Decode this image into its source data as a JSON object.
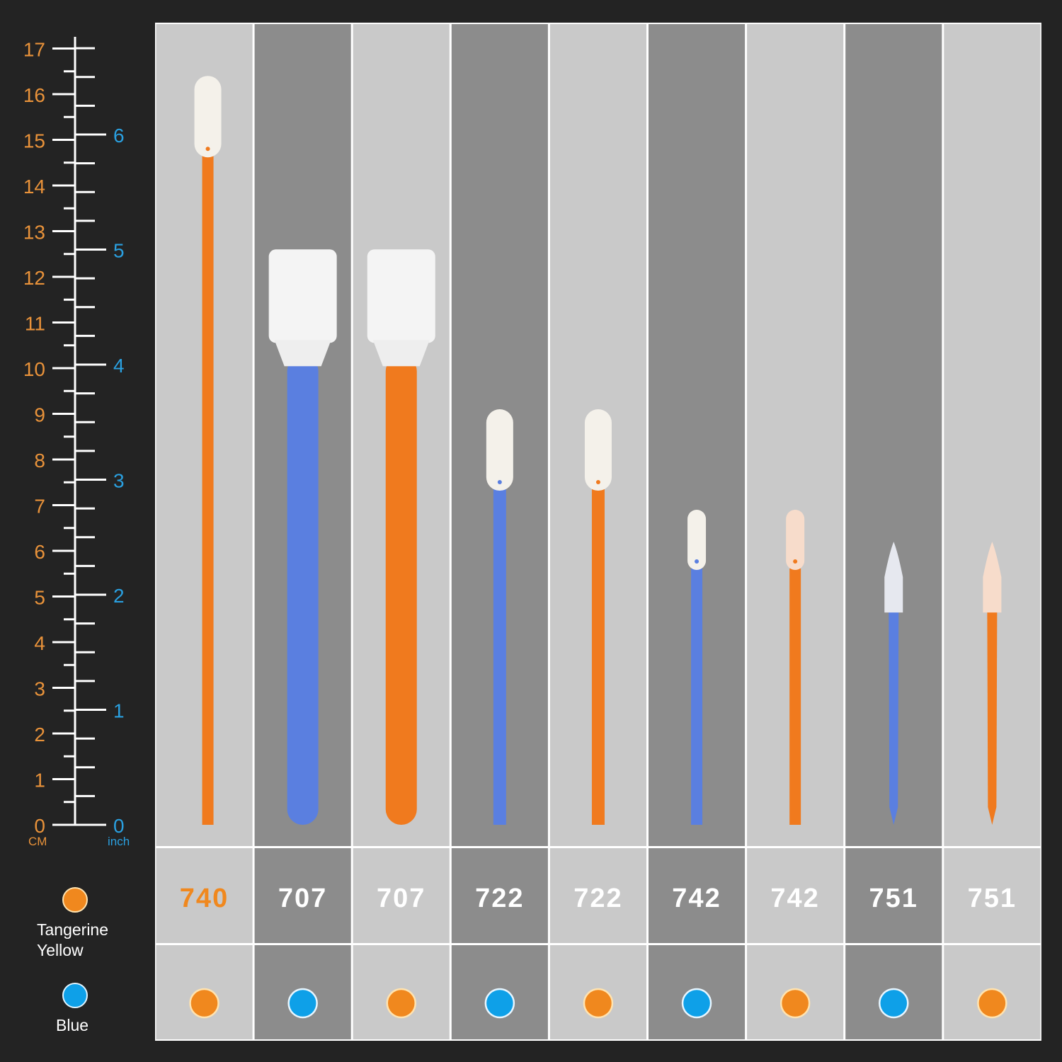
{
  "ruler": {
    "cm_unit": "CM",
    "inch_unit": "inch",
    "cm_max": 17,
    "inch_max": 6,
    "cm_color": "#e8923a",
    "inch_color": "#2aa0e0"
  },
  "legend": {
    "items": [
      {
        "label": "Tangerine\nYellow",
        "color": "#f0881e"
      },
      {
        "label": "Blue",
        "color": "#0ea0e8"
      }
    ]
  },
  "colors": {
    "tangerine": "#f07a1e",
    "blue": "#5a7fe0",
    "chip_tangerine": "#f0881e",
    "chip_blue": "#0ea0e8",
    "light_col": "#c9c9c9",
    "dark_col": "#8c8c8c"
  },
  "products": [
    {
      "code": "740",
      "color": "tangerine",
      "head": "rounded-tip",
      "length_cm": 16.4,
      "highlight": true
    },
    {
      "code": "707",
      "color": "blue",
      "head": "rectangular-foam",
      "length_cm": 12.6
    },
    {
      "code": "707",
      "color": "tangerine",
      "head": "rectangular-foam",
      "length_cm": 12.6
    },
    {
      "code": "722",
      "color": "blue",
      "head": "rounded-tip",
      "length_cm": 9.1
    },
    {
      "code": "722",
      "color": "tangerine",
      "head": "rounded-tip",
      "length_cm": 9.1
    },
    {
      "code": "742",
      "color": "blue",
      "head": "small-rounded-tip",
      "length_cm": 6.9
    },
    {
      "code": "742",
      "color": "tangerine",
      "head": "small-rounded-tip",
      "length_cm": 6.9
    },
    {
      "code": "751",
      "color": "blue",
      "head": "pointed-tip",
      "length_cm": 6.2
    },
    {
      "code": "751",
      "color": "tangerine",
      "head": "pointed-tip",
      "length_cm": 6.2
    }
  ]
}
